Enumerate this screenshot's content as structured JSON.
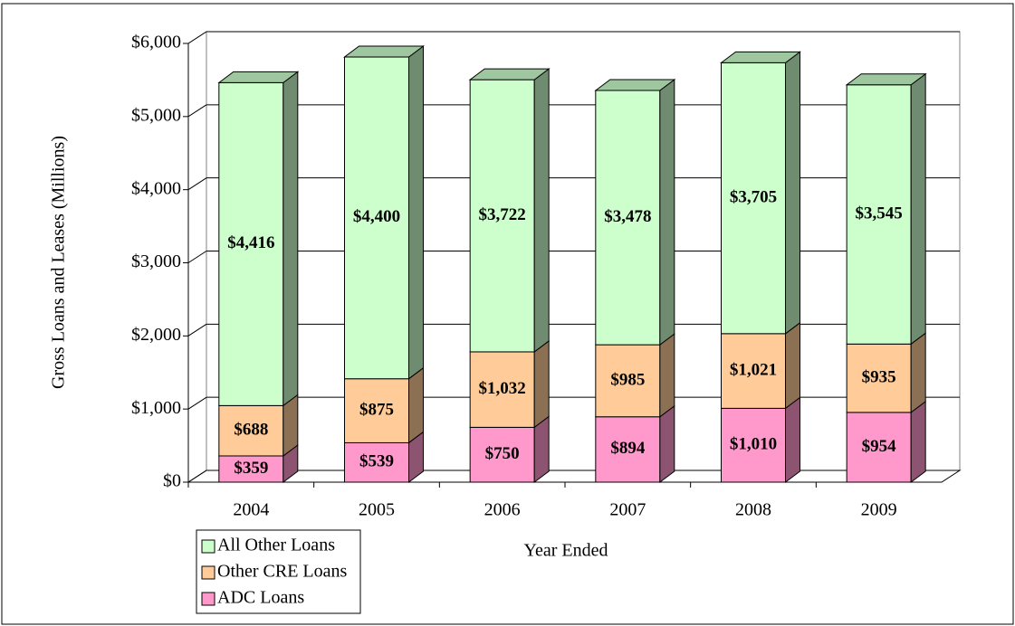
{
  "chart_data": {
    "type": "bar3d_stacked",
    "categories": [
      "2004",
      "2005",
      "2006",
      "2007",
      "2008",
      "2009"
    ],
    "series": [
      {
        "name": "ADC Loans",
        "color": "#ff99cc",
        "values": [
          359,
          539,
          750,
          894,
          1010,
          954
        ],
        "value_labels": [
          "$359",
          "$539",
          "$750",
          "$894",
          "$1,010",
          "$954"
        ]
      },
      {
        "name": "Other CRE Loans",
        "color": "#ffcc99",
        "values": [
          688,
          875,
          1032,
          985,
          1021,
          935
        ],
        "value_labels": [
          "$688",
          "$875",
          "$1,032",
          "$985",
          "$1,021",
          "$935"
        ]
      },
      {
        "name": "All Other Loans",
        "color": "#ccffcc",
        "values": [
          4416,
          4400,
          3722,
          3478,
          3705,
          3545
        ],
        "value_labels": [
          "$4,416",
          "$4,400",
          "$3,722",
          "$3,478",
          "$3,705",
          "$3,545"
        ]
      }
    ],
    "ylabel": "Gross Loans and Leases  (Millions)",
    "xlabel": "Year Ended",
    "ylim": [
      0,
      6000
    ],
    "yticks": [
      {
        "value": 0,
        "label": "$0"
      },
      {
        "value": 1000,
        "label": "$1,000"
      },
      {
        "value": 2000,
        "label": "$2,000"
      },
      {
        "value": 3000,
        "label": "$3,000"
      },
      {
        "value": 4000,
        "label": "$4,000"
      },
      {
        "value": 5000,
        "label": "$5,000"
      },
      {
        "value": 6000,
        "label": "$6,000"
      }
    ],
    "grid": true,
    "legend": "bottom-left"
  }
}
